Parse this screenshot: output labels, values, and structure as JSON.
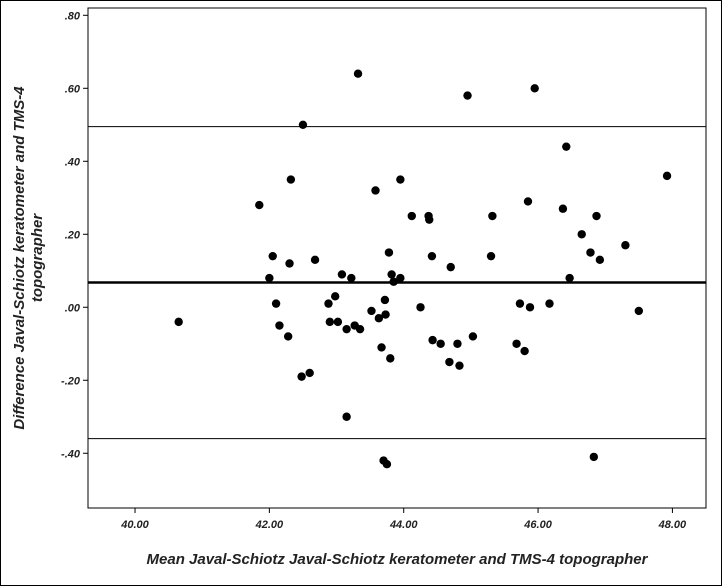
{
  "chart_data": {
    "type": "scatter",
    "title": "",
    "xlabel": "Mean Javal-Schiotz Javal-Schiotz keratometer and TMS-4 topographer",
    "ylabel_lines": [
      "Difference Javal-Schiotz keratometer and TMS-4",
      "topographer"
    ],
    "xlim": [
      39.3,
      48.5
    ],
    "ylim": [
      -0.55,
      0.82
    ],
    "x_ticks": [
      40,
      42,
      44,
      46,
      48
    ],
    "x_tick_labels": [
      "40.00",
      "42.00",
      "44.00",
      "46.00",
      "48.00"
    ],
    "y_ticks": [
      0.8,
      0.6,
      0.4,
      0.2,
      0.0,
      -0.2,
      -0.4
    ],
    "y_tick_labels": [
      ".80",
      ".60",
      ".40",
      ".20",
      ".00",
      "-.20",
      "-.40"
    ],
    "grid": false,
    "reference_lines": [
      {
        "role": "mean",
        "y": 0.068
      },
      {
        "role": "upper-limit",
        "y": 0.495
      },
      {
        "role": "lower-limit",
        "y": -0.36
      }
    ],
    "points": [
      {
        "x": 40.65,
        "y": -0.04
      },
      {
        "x": 41.85,
        "y": 0.28
      },
      {
        "x": 42.0,
        "y": 0.08
      },
      {
        "x": 42.05,
        "y": 0.14
      },
      {
        "x": 42.1,
        "y": 0.01
      },
      {
        "x": 42.15,
        "y": -0.05
      },
      {
        "x": 42.28,
        "y": -0.08
      },
      {
        "x": 42.3,
        "y": 0.12
      },
      {
        "x": 42.32,
        "y": 0.35
      },
      {
        "x": 42.48,
        "y": -0.19
      },
      {
        "x": 42.5,
        "y": 0.5
      },
      {
        "x": 42.6,
        "y": -0.18
      },
      {
        "x": 42.68,
        "y": 0.13
      },
      {
        "x": 42.88,
        "y": 0.01
      },
      {
        "x": 42.9,
        "y": -0.04
      },
      {
        "x": 42.98,
        "y": 0.03
      },
      {
        "x": 43.02,
        "y": -0.04
      },
      {
        "x": 43.08,
        "y": 0.09
      },
      {
        "x": 43.15,
        "y": -0.06
      },
      {
        "x": 43.15,
        "y": -0.3
      },
      {
        "x": 43.22,
        "y": 0.08
      },
      {
        "x": 43.27,
        "y": -0.05
      },
      {
        "x": 43.32,
        "y": 0.64
      },
      {
        "x": 43.35,
        "y": -0.06
      },
      {
        "x": 43.52,
        "y": -0.01
      },
      {
        "x": 43.58,
        "y": 0.32
      },
      {
        "x": 43.63,
        "y": -0.03
      },
      {
        "x": 43.67,
        "y": -0.11
      },
      {
        "x": 43.7,
        "y": -0.42
      },
      {
        "x": 43.72,
        "y": 0.02
      },
      {
        "x": 43.73,
        "y": -0.02
      },
      {
        "x": 43.75,
        "y": -0.43
      },
      {
        "x": 43.78,
        "y": 0.15
      },
      {
        "x": 43.8,
        "y": -0.14
      },
      {
        "x": 43.82,
        "y": 0.09
      },
      {
        "x": 43.85,
        "y": 0.07
      },
      {
        "x": 43.95,
        "y": 0.08
      },
      {
        "x": 43.95,
        "y": 0.35
      },
      {
        "x": 44.12,
        "y": 0.25
      },
      {
        "x": 44.25,
        "y": 0.0
      },
      {
        "x": 44.37,
        "y": 0.25
      },
      {
        "x": 44.38,
        "y": 0.24
      },
      {
        "x": 44.42,
        "y": 0.14
      },
      {
        "x": 44.43,
        "y": -0.09
      },
      {
        "x": 44.55,
        "y": -0.1
      },
      {
        "x": 44.68,
        "y": -0.15
      },
      {
        "x": 44.7,
        "y": 0.11
      },
      {
        "x": 44.8,
        "y": -0.1
      },
      {
        "x": 44.83,
        "y": -0.16
      },
      {
        "x": 44.95,
        "y": 0.58
      },
      {
        "x": 45.03,
        "y": -0.08
      },
      {
        "x": 45.3,
        "y": 0.14
      },
      {
        "x": 45.32,
        "y": 0.25
      },
      {
        "x": 45.68,
        "y": -0.1
      },
      {
        "x": 45.73,
        "y": 0.01
      },
      {
        "x": 45.8,
        "y": -0.12
      },
      {
        "x": 45.85,
        "y": 0.29
      },
      {
        "x": 45.88,
        "y": 0.0
      },
      {
        "x": 45.95,
        "y": 0.6
      },
      {
        "x": 46.17,
        "y": 0.01
      },
      {
        "x": 46.37,
        "y": 0.27
      },
      {
        "x": 46.42,
        "y": 0.44
      },
      {
        "x": 46.47,
        "y": 0.08
      },
      {
        "x": 46.65,
        "y": 0.2
      },
      {
        "x": 46.78,
        "y": 0.15
      },
      {
        "x": 46.83,
        "y": -0.41
      },
      {
        "x": 46.87,
        "y": 0.25
      },
      {
        "x": 46.92,
        "y": 0.13
      },
      {
        "x": 47.3,
        "y": 0.17
      },
      {
        "x": 47.5,
        "y": -0.01
      },
      {
        "x": 47.92,
        "y": 0.36
      }
    ]
  }
}
